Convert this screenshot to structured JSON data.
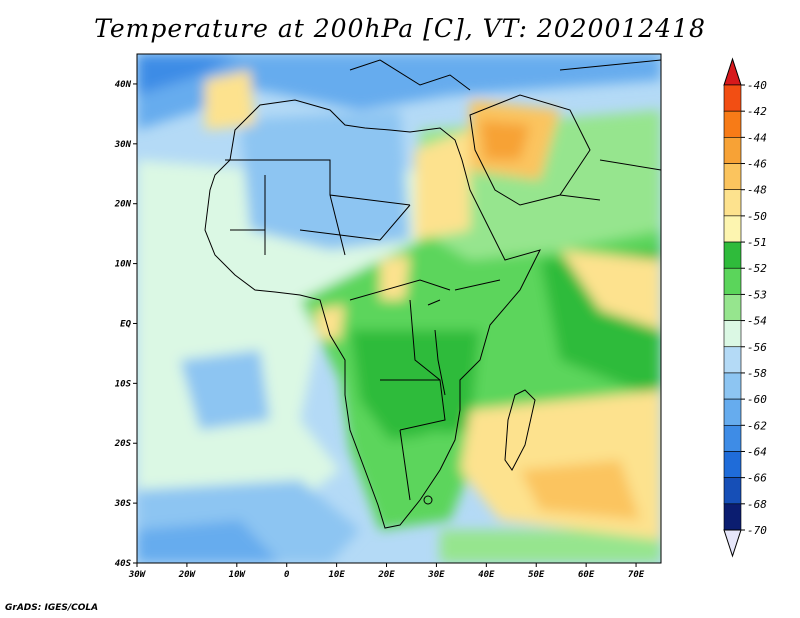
{
  "title": "Temperature at 200hPa [C], VT: 2020012418",
  "credit": "GrADS: IGES/COLA",
  "map": {
    "x_ticks": [
      "30W",
      "20W",
      "10W",
      "0",
      "10E",
      "20E",
      "30E",
      "40E",
      "50E",
      "60E",
      "70E"
    ],
    "y_ticks": [
      "40N",
      "30N",
      "20N",
      "10N",
      "EQ",
      "10S",
      "20S",
      "30S",
      "40S"
    ],
    "lon_range": [
      -30,
      75
    ],
    "lat_range": [
      -40,
      45
    ]
  },
  "colorbar": {
    "labels": [
      "-40",
      "-42",
      "-44",
      "-46",
      "-48",
      "-50",
      "-51",
      "-52",
      "-53",
      "-54",
      "-56",
      "-58",
      "-60",
      "-62",
      "-64",
      "-66",
      "-68",
      "-70"
    ],
    "colors": [
      "#d7191c",
      "#f24e13",
      "#f77b17",
      "#f7a236",
      "#fbc45e",
      "#fde28e",
      "#fdf5b0",
      "#2fbb3b",
      "#5bd55b",
      "#96e58e",
      "#dbf8e4",
      "#b4daf6",
      "#8dc5f2",
      "#66acee",
      "#3e8ce6",
      "#1f6cd9",
      "#164fb7",
      "#0b1d70"
    ],
    "top_color": "#d7191c",
    "bottom_color": "#e6e6fa"
  }
}
